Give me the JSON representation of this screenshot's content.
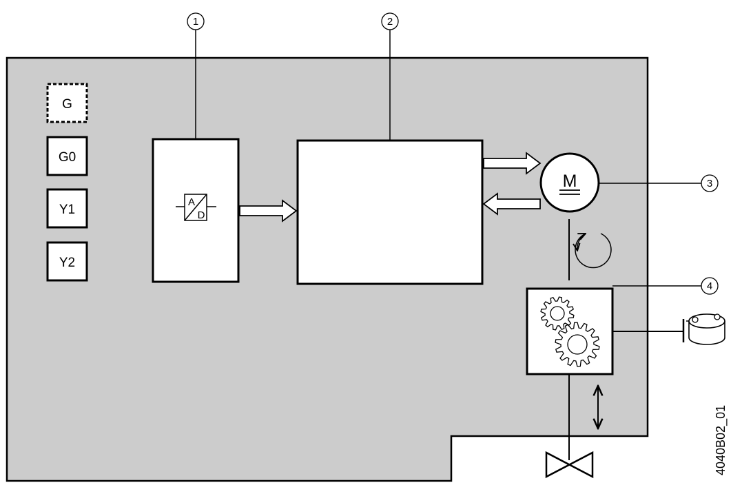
{
  "terminals": [
    {
      "label": "G",
      "style": "dashed"
    },
    {
      "label": "G0",
      "style": "solid"
    },
    {
      "label": "Y1",
      "style": "solid"
    },
    {
      "label": "Y2",
      "style": "solid"
    }
  ],
  "converter": {
    "top_letter": "A",
    "bottom_letter": "D"
  },
  "motor": {
    "symbol": "M"
  },
  "callouts": [
    "1",
    "2",
    "3",
    "4"
  ],
  "drawing_code": "4040B02_01",
  "colors": {
    "housing": "#cccccc",
    "line": "#000000",
    "box_fill": "#ffffff"
  }
}
